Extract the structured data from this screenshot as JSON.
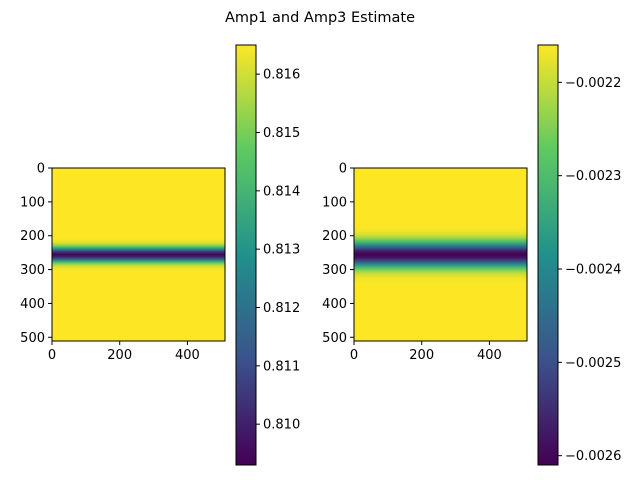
{
  "figure": {
    "title": "Amp1 and Amp3 Estimate"
  },
  "colormap": {
    "name": "viridis",
    "stops": [
      "#440154",
      "#3b528b",
      "#21918c",
      "#5ec962",
      "#fde725"
    ]
  },
  "chart_data": [
    {
      "type": "heatmap",
      "title": "",
      "xlabel": "",
      "ylabel": "",
      "xlim": [
        0,
        511
      ],
      "ylim": [
        511,
        0
      ],
      "x_ticks": [
        "0",
        "200",
        "400"
      ],
      "x_tick_values": [
        0,
        200,
        400
      ],
      "y_ticks": [
        "0",
        "100",
        "200",
        "300",
        "400",
        "500"
      ],
      "y_tick_values": [
        0,
        100,
        200,
        300,
        400,
        500
      ],
      "description": "uniform field with a dark horizontal band near row 256",
      "band_center_row": 256,
      "band_halfwidth_rows": 26,
      "background_value": 0.8165,
      "band_min_value": 0.8093,
      "colorbar": {
        "vmin": 0.8093,
        "vmax": 0.8165,
        "ticks": [
          "0.810",
          "0.811",
          "0.812",
          "0.813",
          "0.814",
          "0.815",
          "0.816"
        ],
        "tick_values": [
          0.81,
          0.811,
          0.812,
          0.813,
          0.814,
          0.815,
          0.816
        ]
      }
    },
    {
      "type": "heatmap",
      "title": "",
      "xlabel": "",
      "ylabel": "",
      "xlim": [
        0,
        511
      ],
      "ylim": [
        511,
        0
      ],
      "x_ticks": [
        "0",
        "200",
        "400"
      ],
      "x_tick_values": [
        0,
        200,
        400
      ],
      "y_ticks": [
        "0",
        "100",
        "200",
        "300",
        "400",
        "500"
      ],
      "y_tick_values": [
        0,
        100,
        200,
        300,
        400,
        500
      ],
      "description": "uniform field with a broader dark horizontal band near row 256",
      "band_center_row": 256,
      "band_halfwidth_rows": 45,
      "background_value": -0.00216,
      "band_min_value": -0.00261,
      "colorbar": {
        "vmin": -0.00261,
        "vmax": -0.00216,
        "ticks": [
          "−0.0026",
          "−0.0025",
          "−0.0024",
          "−0.0023",
          "−0.0022"
        ],
        "tick_values": [
          -0.0026,
          -0.0025,
          -0.0024,
          -0.0023,
          -0.0022
        ]
      }
    }
  ]
}
